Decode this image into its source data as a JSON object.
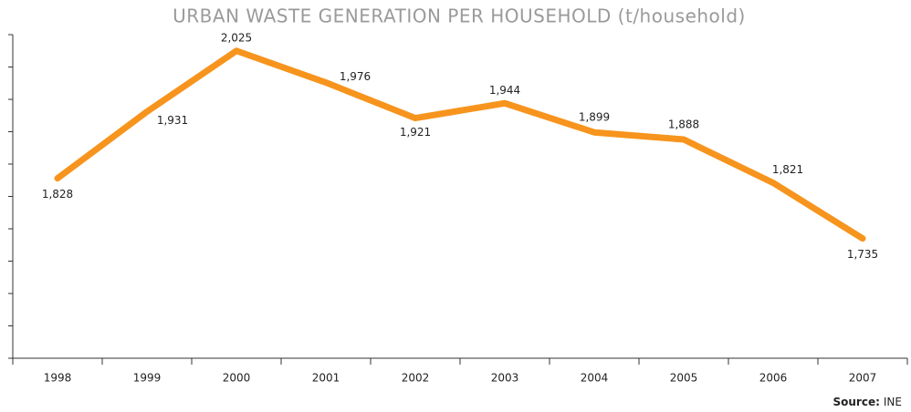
{
  "chart_data": {
    "type": "line",
    "title": "URBAN WASTE GENERATION PER HOUSEHOLD (t/household)",
    "categories": [
      "1998",
      "1999",
      "2000",
      "2001",
      "2002",
      "2003",
      "2004",
      "2005",
      "2006",
      "2007"
    ],
    "series": [
      {
        "name": "Urban waste",
        "color": "#f7941d",
        "values": [
          1828,
          1931,
          2025,
          1976,
          1921,
          1944,
          1899,
          1888,
          1821,
          1735
        ],
        "value_labels": [
          "1,828",
          "1,931",
          "2,025",
          "1,976",
          "1,921",
          "1,944",
          "1,899",
          "1,888",
          "1,821",
          "1,735"
        ]
      }
    ],
    "ylim": [
      1550,
      2050
    ],
    "yticks": [
      1550,
      1600,
      1650,
      1700,
      1750,
      1800,
      1850,
      1900,
      1950,
      2000,
      2050
    ],
    "source_label": "Source:",
    "source": "INE"
  }
}
